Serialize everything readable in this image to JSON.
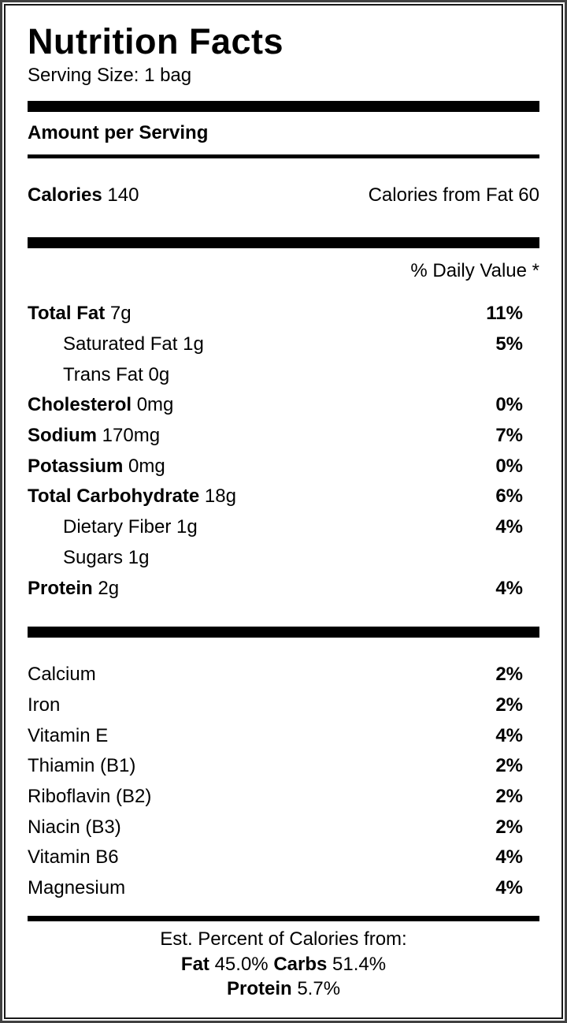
{
  "header": {
    "title": "Nutrition Facts",
    "serving_size": "Serving Size: 1 bag"
  },
  "amount_per_serving_label": "Amount per Serving",
  "calories": {
    "label": "Calories",
    "value": "140",
    "from_fat_text": "Calories from Fat 60"
  },
  "daily_value_header": "% Daily Value *",
  "nutrients": [
    {
      "label": "Total Fat",
      "amount": "7g",
      "percent": "11%"
    },
    {
      "label": "Saturated Fat",
      "amount": "1g",
      "percent": "5%"
    },
    {
      "label": "Trans Fat",
      "amount": "0g",
      "percent": ""
    },
    {
      "label": "Cholesterol",
      "amount": "0mg",
      "percent": "0%"
    },
    {
      "label": "Sodium",
      "amount": "170mg",
      "percent": "7%"
    },
    {
      "label": "Potassium",
      "amount": "0mg",
      "percent": "0%"
    },
    {
      "label": "Total Carbohydrate",
      "amount": "18g",
      "percent": "6%"
    },
    {
      "label": "Dietary Fiber",
      "amount": "1g",
      "percent": "4%"
    },
    {
      "label": "Sugars",
      "amount": "1g",
      "percent": ""
    },
    {
      "label": "Protein",
      "amount": "2g",
      "percent": "4%"
    }
  ],
  "micronutrients": [
    {
      "label": "Calcium",
      "percent": "2%"
    },
    {
      "label": "Iron",
      "percent": "2%"
    },
    {
      "label": "Vitamin E",
      "percent": "4%"
    },
    {
      "label": "Thiamin (B1)",
      "percent": "2%"
    },
    {
      "label": "Riboflavin (B2)",
      "percent": "2%"
    },
    {
      "label": "Niacin (B3)",
      "percent": "2%"
    },
    {
      "label": "Vitamin B6",
      "percent": "4%"
    },
    {
      "label": "Magnesium",
      "percent": "4%"
    }
  ],
  "footer": {
    "line1": "Est. Percent of Calories from:",
    "fat_label": "Fat",
    "fat_value": "45.0%",
    "carbs_label": "Carbs",
    "carbs_value": "51.4%",
    "protein_label": "Protein",
    "protein_value": "5.7%"
  },
  "colors": {
    "text": "#000000",
    "background": "#ffffff",
    "outer_border": "#414141",
    "inner_border": "#191919",
    "bar": "#000000"
  }
}
